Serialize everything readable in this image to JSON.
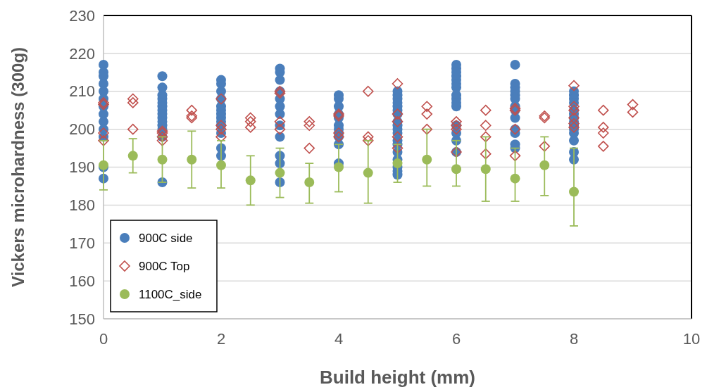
{
  "chart_data": {
    "type": "scatter",
    "xlabel": "Build height (mm)",
    "ylabel": "Vickers microhardness (300g)",
    "xlim": [
      0,
      10
    ],
    "ylim": [
      150,
      230
    ],
    "xticks": [
      0,
      2,
      4,
      6,
      8,
      10
    ],
    "yticks": [
      150,
      160,
      170,
      180,
      190,
      200,
      210,
      220,
      230
    ],
    "grid": "y",
    "legend": "bottom left",
    "series": [
      {
        "name": "900C side",
        "color": "#4a7ebb",
        "marker": "circle",
        "x": [
          0,
          0,
          0,
          0,
          0,
          0,
          0,
          0,
          0,
          0,
          0,
          0,
          0,
          1,
          1,
          1,
          1,
          1,
          1,
          1,
          1,
          1,
          1,
          1,
          1,
          1,
          1,
          2,
          2,
          2,
          2,
          2,
          2,
          2,
          2,
          2,
          2,
          2,
          2,
          2,
          3,
          3,
          3,
          3,
          3,
          3,
          3,
          3,
          3,
          3,
          3,
          3,
          4,
          4,
          4,
          4,
          4,
          4,
          4,
          4,
          4,
          4,
          4,
          5,
          5,
          5,
          5,
          5,
          5,
          5,
          5,
          5,
          5,
          5,
          5,
          5,
          5,
          5,
          5,
          5,
          5,
          6,
          6,
          6,
          6,
          6,
          6,
          6,
          6,
          6,
          6,
          6,
          6,
          6,
          6,
          6,
          7,
          7,
          7,
          7,
          7,
          7,
          7,
          7,
          7,
          7,
          7,
          7,
          7,
          8,
          8,
          8,
          8,
          8,
          8,
          8,
          8,
          8,
          8,
          8,
          8,
          8,
          8
        ],
        "values": [
          217,
          215,
          214,
          212,
          210,
          208,
          206,
          204,
          202,
          200,
          198,
          190,
          187,
          214,
          211,
          209,
          208,
          207,
          206,
          205,
          204,
          203,
          202,
          201,
          200,
          198,
          186,
          213,
          212,
          210,
          208,
          206,
          205,
          204,
          203,
          202,
          201,
          199,
          195,
          193,
          216,
          215,
          213,
          210,
          208,
          206,
          204,
          201,
          198,
          193,
          191,
          186,
          209,
          208,
          206,
          204,
          203,
          201,
          200,
          199,
          198,
          196,
          191,
          210,
          209,
          208,
          207,
          206,
          205,
          204,
          202,
          201,
          200,
          199,
          197,
          196,
          194,
          192,
          190,
          189,
          188,
          217,
          216,
          215,
          214,
          213,
          212,
          211,
          209,
          208,
          207,
          206,
          201,
          199,
          197,
          194,
          217,
          212,
          211,
          210,
          209,
          208,
          206,
          205,
          203,
          200,
          199,
          196,
          195,
          210,
          209,
          208,
          207,
          205,
          204,
          203,
          202,
          201,
          200,
          199,
          197,
          194,
          192
        ]
      },
      {
        "name": "900C Top",
        "color": "#c0504d",
        "marker": "diamond",
        "x": [
          0,
          0,
          0,
          0,
          0.5,
          0.5,
          0.5,
          1,
          1,
          1,
          1,
          1.5,
          1.5,
          1.5,
          2,
          2,
          2,
          2,
          2.5,
          2.5,
          2.5,
          3,
          3,
          3,
          3,
          3.5,
          3.5,
          3.5,
          4,
          4,
          4,
          4,
          4.5,
          4.5,
          4.5,
          5,
          5,
          5,
          5,
          5,
          5.5,
          5.5,
          5.5,
          6,
          6,
          6,
          6,
          6.5,
          6.5,
          6.5,
          6.5,
          7,
          7,
          7,
          7,
          7.5,
          7.5,
          7.5,
          8,
          8,
          8,
          8,
          8,
          8,
          8.5,
          8.5,
          8.5,
          8.5,
          9,
          9
        ],
        "values": [
          207,
          206.5,
          199,
          197,
          208,
          207,
          200,
          199.5,
          199,
          198,
          197,
          205,
          203.5,
          203,
          208,
          201,
          200,
          198,
          203,
          202,
          200.5,
          210,
          209.5,
          202,
          200,
          202,
          201,
          195,
          204,
          203.5,
          199,
          198,
          210,
          198,
          197,
          212,
          204,
          202,
          198,
          195,
          206,
          204,
          200,
          202,
          201,
          200,
          194,
          205,
          201,
          198,
          193.5,
          205.5,
          205,
          200,
          193,
          203.5,
          203,
          195.5,
          211.5,
          206,
          205,
          203,
          201.5,
          200.5,
          205,
          200.5,
          199,
          195.5,
          206.5,
          204.5
        ]
      },
      {
        "name": "1100C_side",
        "color": "#9bbb59",
        "marker": "circle",
        "x": [
          0,
          0.5,
          1,
          1.5,
          2,
          2.5,
          3,
          3.5,
          4,
          4.5,
          5,
          5.5,
          6,
          6.5,
          7,
          7.5,
          8
        ],
        "values": [
          190.5,
          193,
          192,
          192,
          190.5,
          186.5,
          188.5,
          186,
          190,
          188.5,
          191,
          192,
          189.5,
          189.5,
          187,
          190.5,
          183.5
        ],
        "errors": [
          [
            184,
            197
          ],
          [
            188.5,
            197.5
          ],
          [
            186,
            198
          ],
          [
            184.5,
            199.5
          ],
          [
            184.5,
            197
          ],
          [
            180,
            193
          ],
          [
            182,
            195
          ],
          [
            180.5,
            191
          ],
          [
            183.5,
            196
          ],
          [
            180.5,
            197
          ],
          [
            186,
            196
          ],
          [
            185,
            200
          ],
          [
            185,
            197
          ],
          [
            181,
            198
          ],
          [
            181,
            195
          ],
          [
            182.5,
            198
          ],
          [
            174.5,
            195
          ]
        ]
      }
    ]
  }
}
